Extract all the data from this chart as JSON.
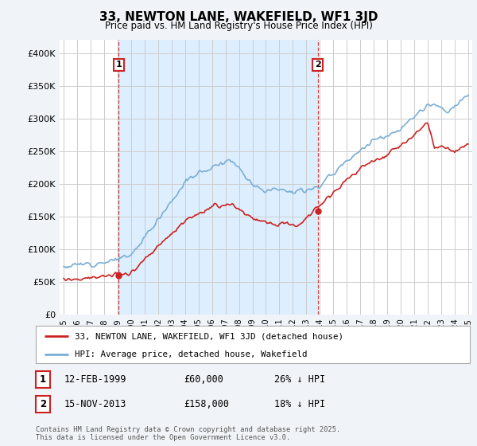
{
  "title": "33, NEWTON LANE, WAKEFIELD, WF1 3JD",
  "subtitle": "Price paid vs. HM Land Registry's House Price Index (HPI)",
  "ylim": [
    0,
    420000
  ],
  "yticks": [
    0,
    50000,
    100000,
    150000,
    200000,
    250000,
    300000,
    350000,
    400000
  ],
  "ytick_labels": [
    "£0",
    "£50K",
    "£100K",
    "£150K",
    "£200K",
    "£250K",
    "£300K",
    "£350K",
    "£400K"
  ],
  "hpi_color": "#7aaed6",
  "price_color": "#cc2222",
  "shade_color": "#ddeeff",
  "sale1_x": 1999.083,
  "sale2_x": 2013.833,
  "sale1_y": 60000,
  "sale2_y": 158000,
  "sale1_date": "12-FEB-1999",
  "sale1_price": "£60,000",
  "sale1_hpi_diff": "26% ↓ HPI",
  "sale2_date": "15-NOV-2013",
  "sale2_price": "£158,000",
  "sale2_hpi_diff": "18% ↓ HPI",
  "legend_label1": "33, NEWTON LANE, WAKEFIELD, WF1 3JD (detached house)",
  "legend_label2": "HPI: Average price, detached house, Wakefield",
  "footer": "Contains HM Land Registry data © Crown copyright and database right 2025.\nThis data is licensed under the Open Government Licence v3.0.",
  "background_color": "#f0f4f8",
  "plot_bg_color": "#ffffff",
  "grid_color": "#cccccc",
  "xlim_left": 1994.7,
  "xlim_right": 2025.3
}
